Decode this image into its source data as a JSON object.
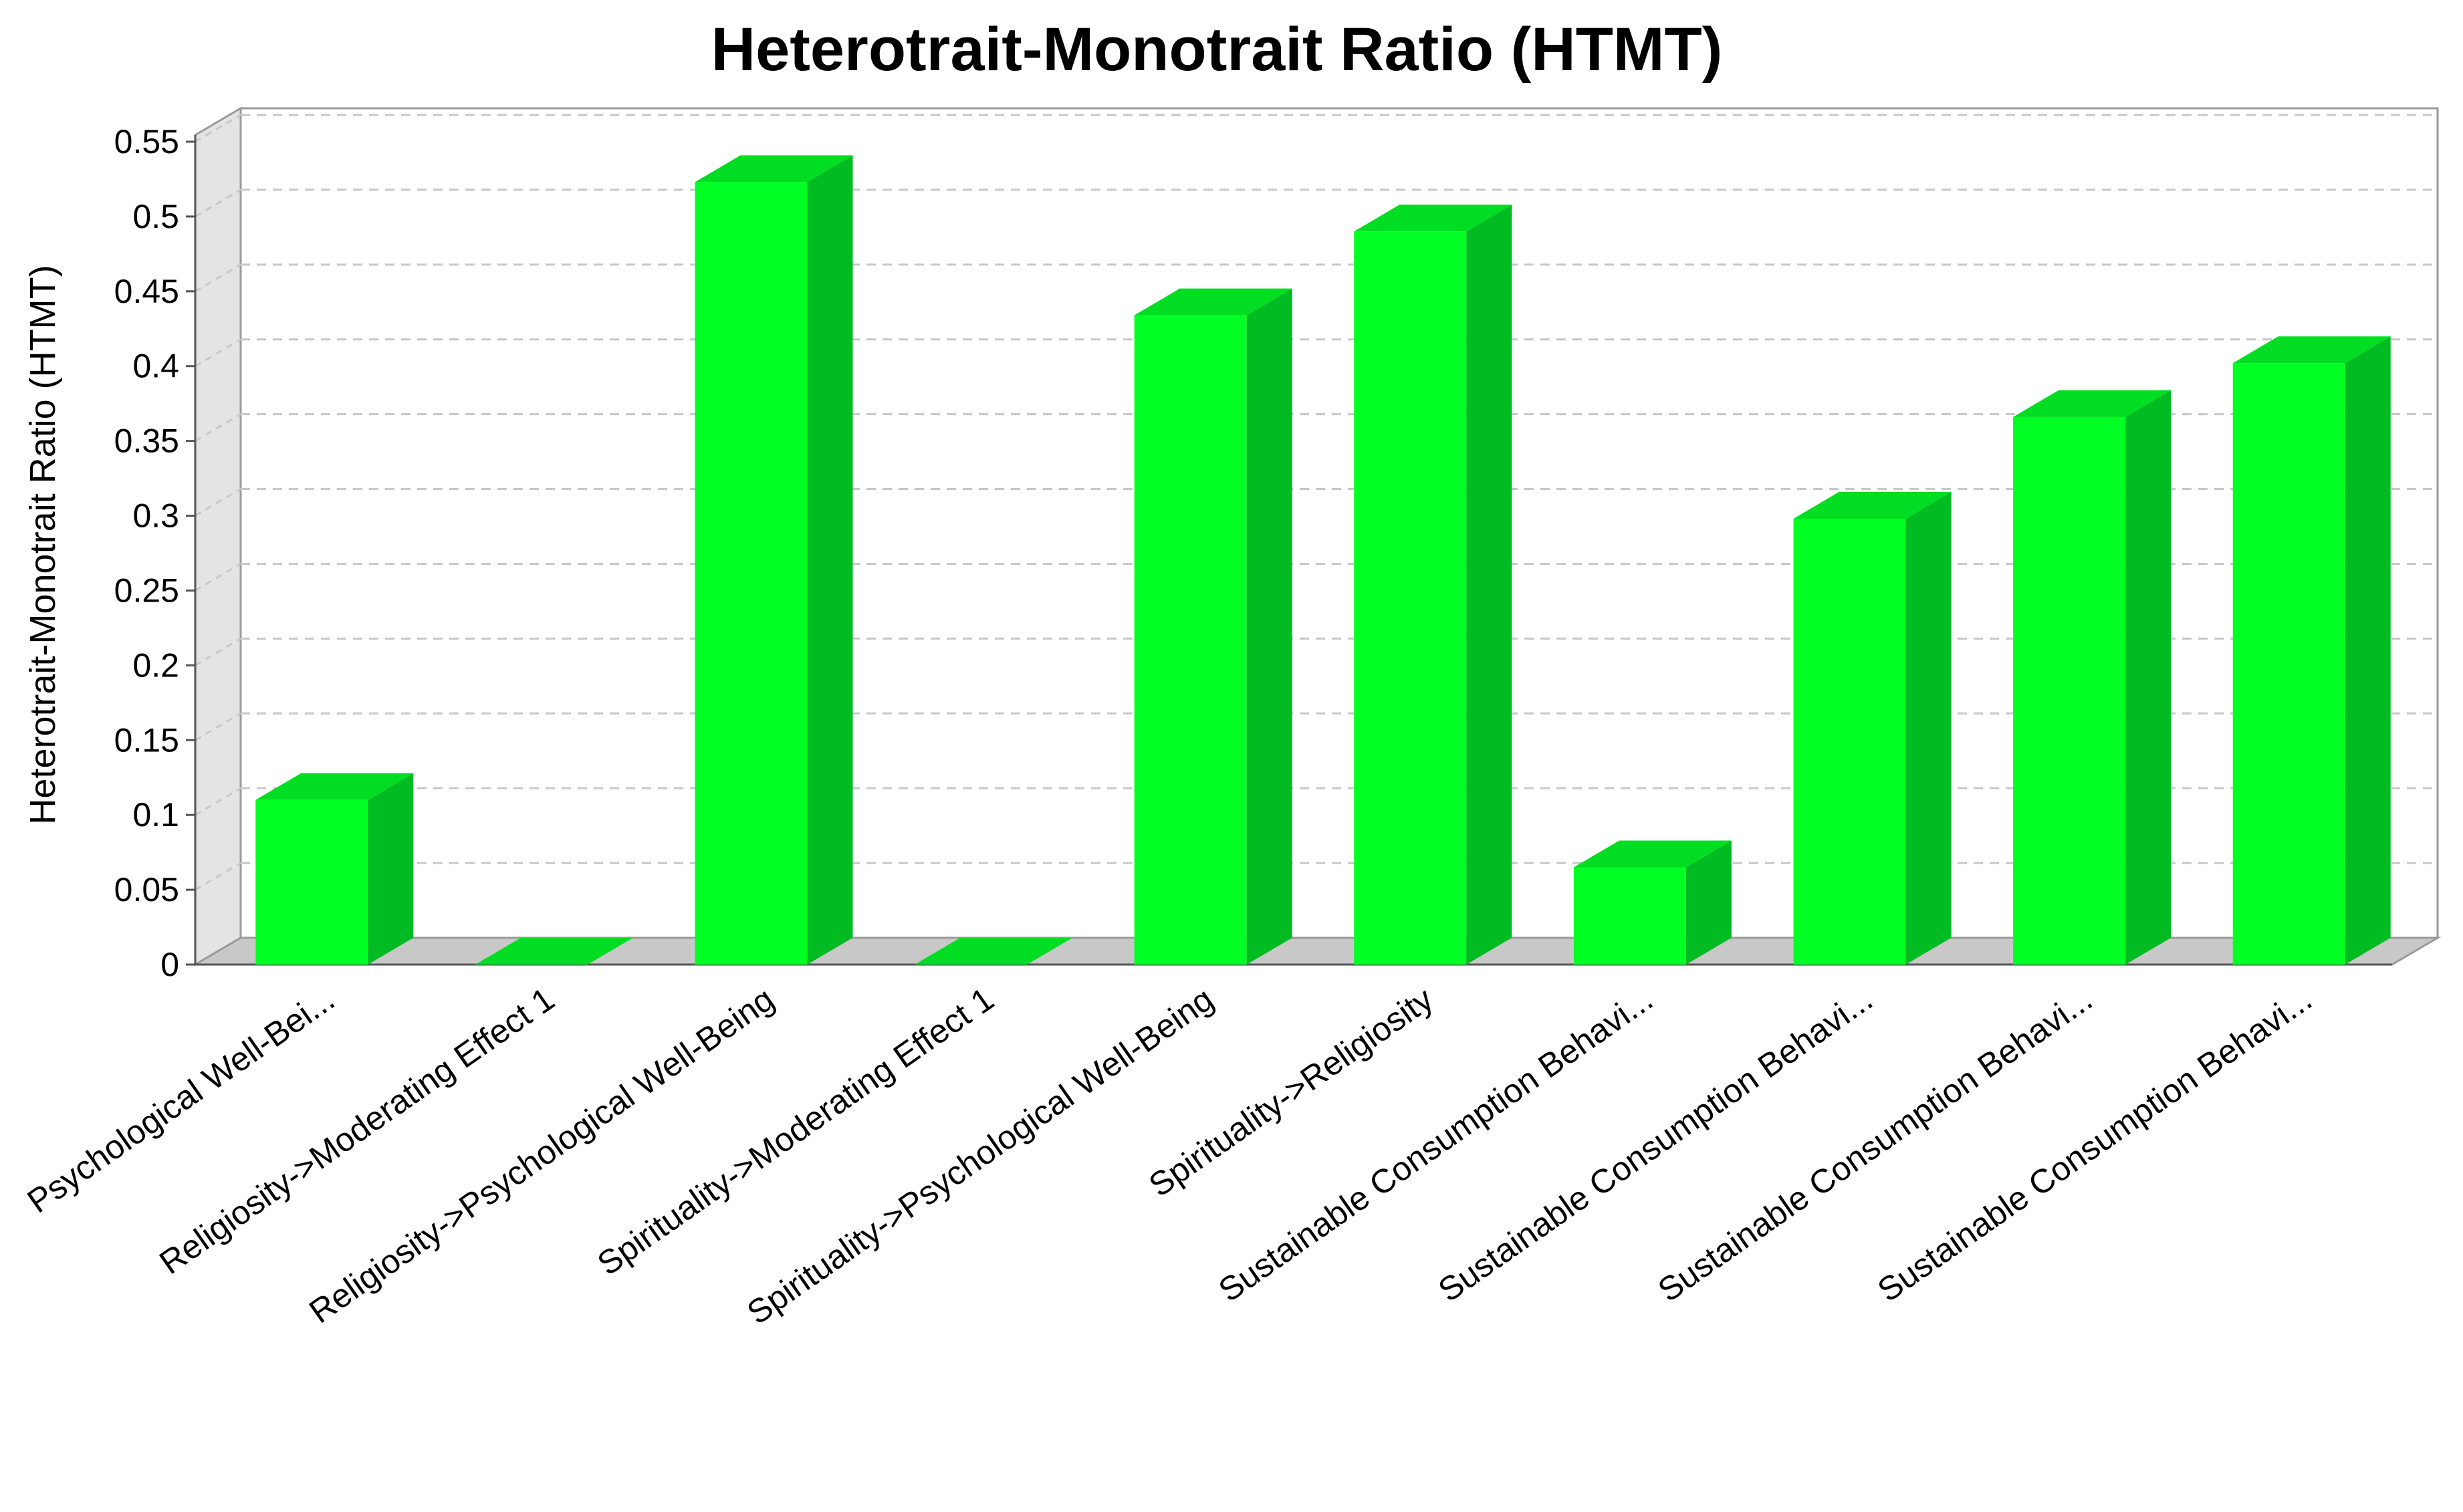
{
  "chart_data": {
    "type": "bar",
    "title": "Heterotrait-Monotrait Ratio (HTMT)",
    "xlabel": "",
    "ylabel": "Heterotrait-Monotrait Ratio (HTMT)",
    "ylim": [
      0,
      0.55
    ],
    "y_ticks": [
      "0",
      "0.05",
      "0.1",
      "0.15",
      "0.2",
      "0.25",
      "0.3",
      "0.35",
      "0.4",
      "0.45",
      "0.5",
      "0.55"
    ],
    "categories": [
      "Psychological Well-Bei...",
      "Religiosity->Moderating Effect 1",
      "Religiosity->Psychological Well-Being",
      "Spirituality->Moderating Effect 1",
      "Spirituality->Psychological Well-Being",
      "Spirituality->Religiosity",
      "Sustainable Consumption Behavi...",
      "Sustainable Consumption Behavi...",
      "Sustainable Consumption Behavi...",
      "Sustainable Consumption Behavi..."
    ],
    "values": [
      0.11,
      0.0,
      0.523,
      0.0,
      0.434,
      0.49,
      0.065,
      0.298,
      0.366,
      0.402
    ],
    "grid": true,
    "style": "3d-bar",
    "colors": {
      "bar_front": "#00ff22",
      "bar_side": "#00bb22",
      "bar_top": "#00dd22",
      "wall": "#e4e4e4",
      "floor": "#c8c8c8",
      "grid": "#c8c8c8"
    }
  }
}
